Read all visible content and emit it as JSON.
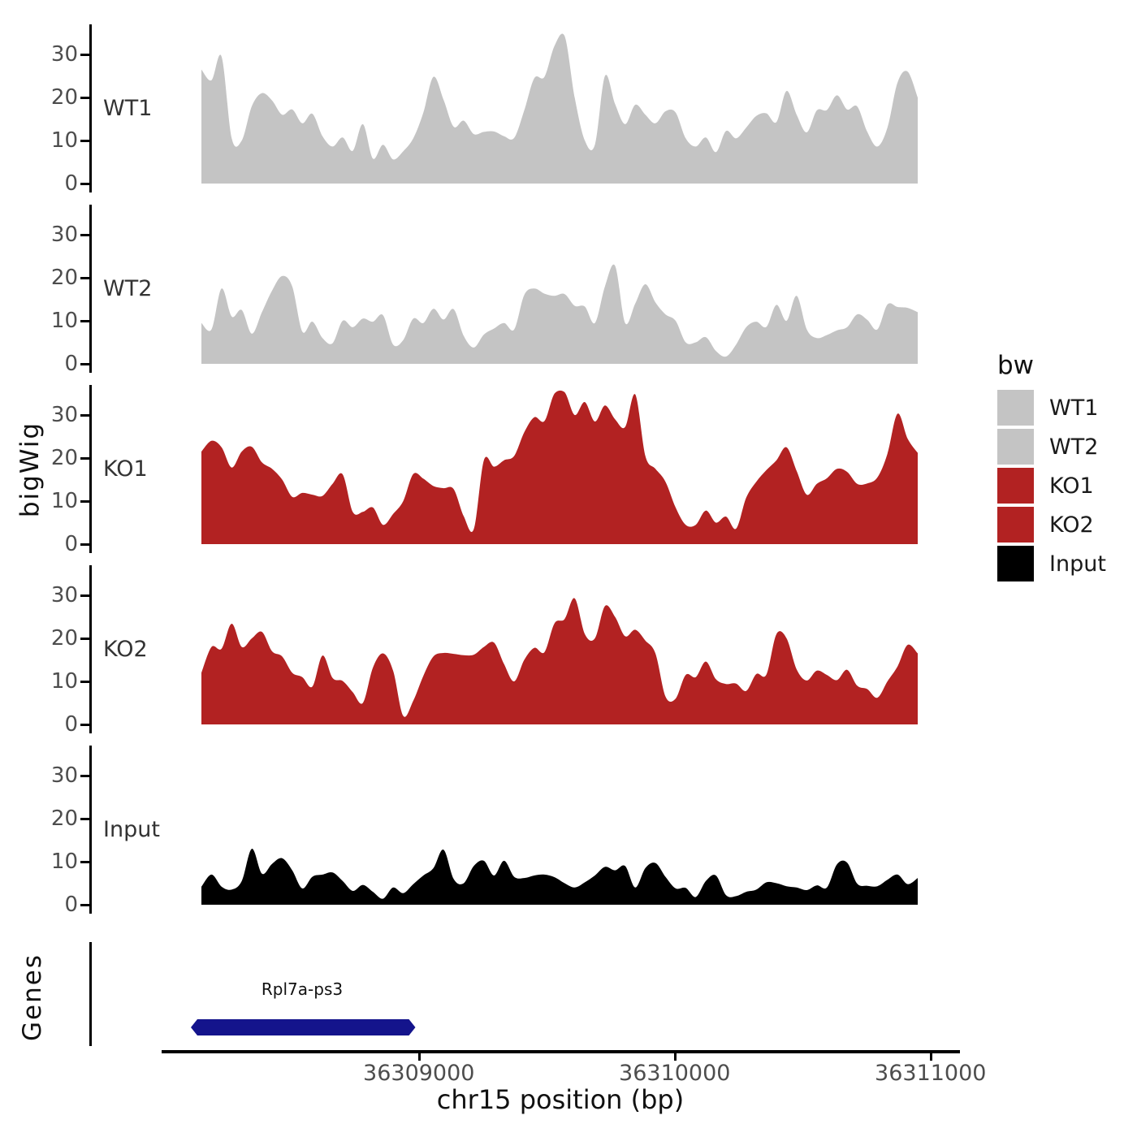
{
  "y_axis": {
    "title": "bigWig",
    "tick_labels": [
      "0",
      "10",
      "20",
      "30"
    ],
    "tick_text_color": "#4D4D4D"
  },
  "x_axis": {
    "title": "chr15 position (bp)",
    "tick_labels": [
      "36309000",
      "36310000",
      "36311000"
    ],
    "tick_text_color": "#4D4D4D"
  },
  "legend": {
    "title": "bw",
    "items": [
      {
        "label": "WT1",
        "color": "#C4C4C4"
      },
      {
        "label": "WT2",
        "color": "#C4C4C4"
      },
      {
        "label": "KO1",
        "color": "#B22222"
      },
      {
        "label": "KO2",
        "color": "#B22222"
      },
      {
        "label": "Input",
        "color": "#000000"
      }
    ]
  },
  "chart_data": {
    "type": "area",
    "title": "",
    "xlabel": "chr15 position (bp)",
    "ylabel": "bigWig",
    "x_range_bp": [
      36308150,
      36310950
    ],
    "xticks_bp": [
      36309000,
      36310000,
      36311000
    ],
    "ylim": [
      0,
      35
    ],
    "yticks": [
      0,
      10,
      20,
      30
    ],
    "grid": false,
    "legend_position": "right",
    "facets": [
      "WT1",
      "WT2",
      "KO1",
      "KO2",
      "Input",
      "Genes"
    ],
    "series": [
      {
        "name": "WT1",
        "color": "#C4C4C4",
        "values": [
          26.5,
          24,
          29.5,
          10.5,
          10,
          18,
          21,
          19.3,
          16,
          17.2,
          14,
          16.2,
          11,
          8.6,
          10.7,
          7.6,
          13.8,
          5.8,
          9,
          5.6,
          7.5,
          10.5,
          16.5,
          24.8,
          19.5,
          13.2,
          14.6,
          11.5,
          12,
          12.1,
          11,
          10.6,
          17,
          24.5,
          24.8,
          32,
          34.3,
          20,
          10,
          9,
          25,
          18.5,
          13.8,
          18.3,
          16,
          14,
          16.8,
          16.5,
          10.5,
          8.6,
          10.7,
          7.3,
          12.2,
          10.5,
          13,
          15.7,
          16.3,
          14.3,
          21.5,
          16,
          11.9,
          17,
          17.1,
          20.5,
          17.2,
          17.9,
          12,
          8.6,
          13,
          23.5,
          26,
          20
        ]
      },
      {
        "name": "WT2",
        "color": "#C4C4C4",
        "values": [
          9.5,
          8,
          17.5,
          11,
          12.5,
          7,
          12,
          17,
          20.4,
          18,
          7.5,
          9.8,
          6,
          4.8,
          10,
          8.5,
          10.5,
          9.8,
          11.3,
          4.5,
          5.5,
          10.5,
          9.5,
          12.8,
          10.3,
          12.7,
          6.5,
          3.8,
          6.8,
          8.2,
          9.5,
          8,
          16,
          17.5,
          16.3,
          15.8,
          16.2,
          13.5,
          13.3,
          9.5,
          18,
          22.8,
          9.5,
          14,
          18.5,
          14.3,
          11.5,
          10,
          5,
          5,
          6.2,
          3,
          1.7,
          4.5,
          8.5,
          9.8,
          8.6,
          13.7,
          10,
          15.8,
          8,
          6,
          6.7,
          7.8,
          8.5,
          11.5,
          10.2,
          8,
          13.8,
          13.2,
          13,
          12
        ]
      },
      {
        "name": "KO1",
        "color": "#B22222",
        "values": [
          21.5,
          24,
          22.5,
          17.8,
          21.5,
          22.6,
          19,
          17.5,
          15,
          11,
          11.9,
          11.5,
          11.2,
          14,
          16.2,
          7.5,
          7.5,
          8.5,
          4.5,
          7,
          10,
          16.3,
          15.2,
          13.5,
          13,
          12.8,
          6.5,
          3.5,
          19.5,
          18,
          19.5,
          20.5,
          26,
          29.5,
          28.6,
          35,
          35.3,
          30,
          33,
          28.5,
          32.2,
          29,
          27.2,
          34.8,
          20.5,
          17.5,
          14.5,
          8.5,
          4.5,
          4.5,
          7.8,
          5,
          6.4,
          3.6,
          10.8,
          14.5,
          17.2,
          19.5,
          22.5,
          17,
          11.5,
          14,
          15.3,
          17.5,
          16.8,
          14,
          14.1,
          15.5,
          21,
          30.3,
          24.5,
          21.2
        ]
      },
      {
        "name": "KO2",
        "color": "#B22222",
        "values": [
          12,
          18,
          17.6,
          23.4,
          18,
          20,
          21.5,
          17,
          15.8,
          12,
          11,
          8.8,
          16,
          10.8,
          10.1,
          7.5,
          5,
          13.2,
          16.5,
          12.5,
          2,
          5.5,
          11.3,
          15.8,
          16.6,
          16.4,
          16.1,
          16.2,
          18,
          19,
          14,
          10,
          15,
          17.8,
          16.8,
          23.5,
          24.5,
          29.3,
          21,
          20,
          27.5,
          25,
          20.5,
          22,
          19.5,
          16.5,
          6.5,
          6,
          11.5,
          11,
          14.6,
          10.5,
          9.4,
          9.5,
          7.8,
          11.7,
          11.6,
          21,
          20,
          12.8,
          10.2,
          12.5,
          11.5,
          10.3,
          12.7,
          9,
          8.2,
          6.2,
          10,
          13.5,
          18.5,
          16.5
        ]
      },
      {
        "name": "Input",
        "color": "#000000",
        "values": [
          4.2,
          7,
          4.2,
          3.5,
          5.5,
          13,
          7.2,
          9.5,
          10.8,
          8,
          3.8,
          6.5,
          7,
          7.5,
          5.5,
          3.2,
          4.6,
          3,
          1.4,
          4,
          2.7,
          4.8,
          6.8,
          8.5,
          12.8,
          6,
          5,
          9,
          10.2,
          6.8,
          10.2,
          6.5,
          6.2,
          6.8,
          7,
          6.4,
          5,
          4,
          5.2,
          6.8,
          8.8,
          8,
          9,
          4,
          8.5,
          9.7,
          6.5,
          3.8,
          3.9,
          1.8,
          5.5,
          6.8,
          2.2,
          2,
          3,
          3.5,
          5.2,
          5,
          4.3,
          4,
          3.4,
          4.5,
          4,
          9.4,
          9.8,
          4.9,
          4.4,
          4.3,
          5.8,
          7,
          4.8,
          6.2
        ]
      }
    ],
    "gene_track": {
      "label": "Genes",
      "genes": [
        {
          "name": "Rpl7a-ps3",
          "start_bp": 36308133,
          "end_bp": 36308960,
          "strand": "-",
          "color": "#14148C"
        }
      ]
    }
  }
}
